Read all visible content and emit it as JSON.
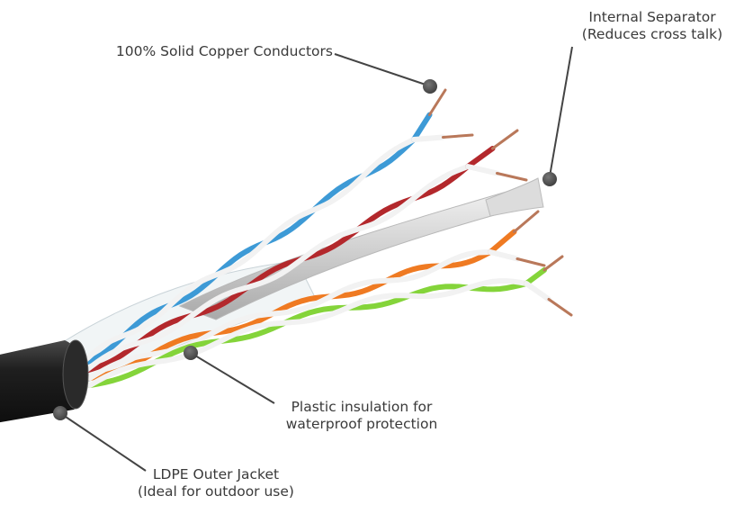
{
  "callouts": {
    "conductors": {
      "line1": "100% Solid Copper Conductors"
    },
    "separator": {
      "line1": "Internal Separator",
      "line2": "(Reduces cross talk)"
    },
    "insulation": {
      "line1": "Plastic insulation for",
      "line2": "waterproof protection"
    },
    "jacket": {
      "line1": "LDPE Outer Jacket",
      "line2": "(Ideal for outdoor use)"
    }
  },
  "colors": {
    "text": "#3a3a3a",
    "leader": "#444444",
    "dot": "#555555",
    "jacket": "#1f1f1f",
    "copper": "#b9785a",
    "blue": "#3d9ad6",
    "red": "#b3282c",
    "orange": "#ef7a22",
    "green": "#84d43a",
    "white_wire": "#f2f2f2",
    "separator": "#cfcfcf"
  }
}
